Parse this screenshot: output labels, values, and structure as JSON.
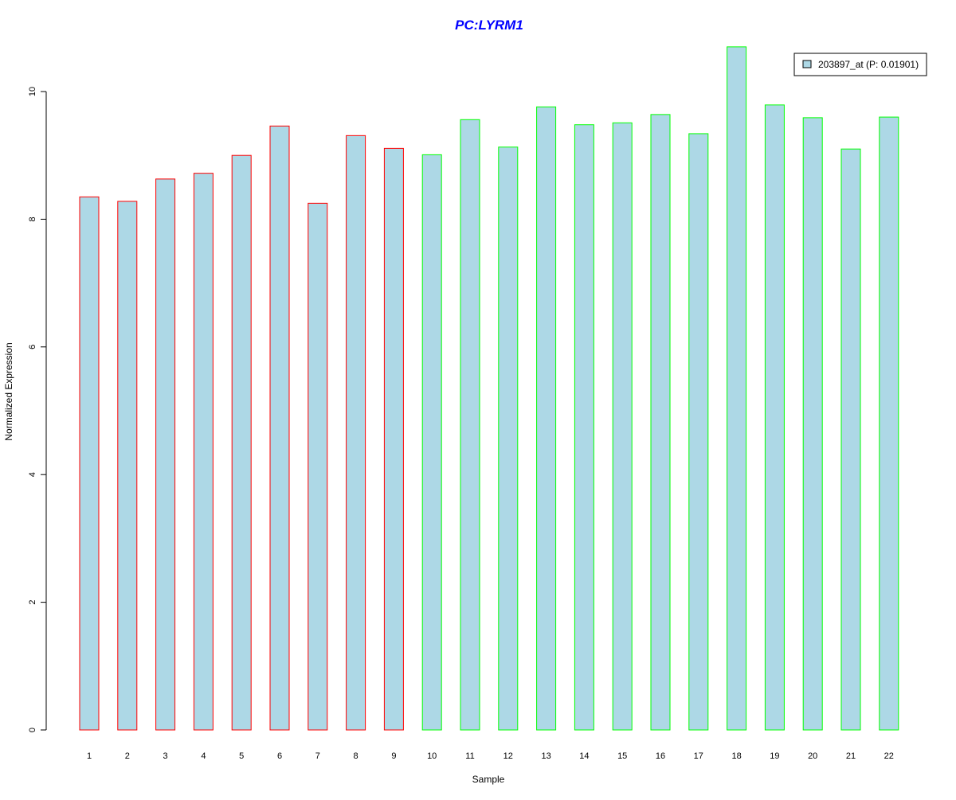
{
  "chart_data": {
    "type": "bar",
    "title": "PC:LYRM1",
    "xlabel": "Sample",
    "ylabel": "Normalized Expression",
    "ylim": [
      0,
      10.7
    ],
    "yticks": [
      0,
      2,
      4,
      6,
      8,
      10
    ],
    "categories": [
      "1",
      "2",
      "3",
      "4",
      "5",
      "6",
      "7",
      "8",
      "9",
      "10",
      "11",
      "12",
      "13",
      "14",
      "15",
      "16",
      "17",
      "18",
      "19",
      "20",
      "21",
      "22"
    ],
    "values": [
      8.35,
      8.28,
      8.63,
      8.72,
      9.0,
      9.46,
      8.25,
      9.31,
      9.11,
      9.01,
      9.56,
      9.13,
      9.76,
      9.48,
      9.51,
      9.64,
      9.34,
      10.7,
      9.79,
      9.59,
      9.1,
      9.6
    ],
    "groups": [
      1,
      1,
      1,
      1,
      1,
      1,
      1,
      1,
      1,
      2,
      2,
      2,
      2,
      2,
      2,
      2,
      2,
      2,
      2,
      2,
      2,
      2
    ],
    "legend": {
      "label": "203897_at (P: 0.01901)",
      "position": "top-right"
    },
    "colors": {
      "fill": "#add8e6",
      "group1_border": "#ff0000",
      "group2_border": "#00ff00",
      "title": "#0000ff"
    }
  }
}
